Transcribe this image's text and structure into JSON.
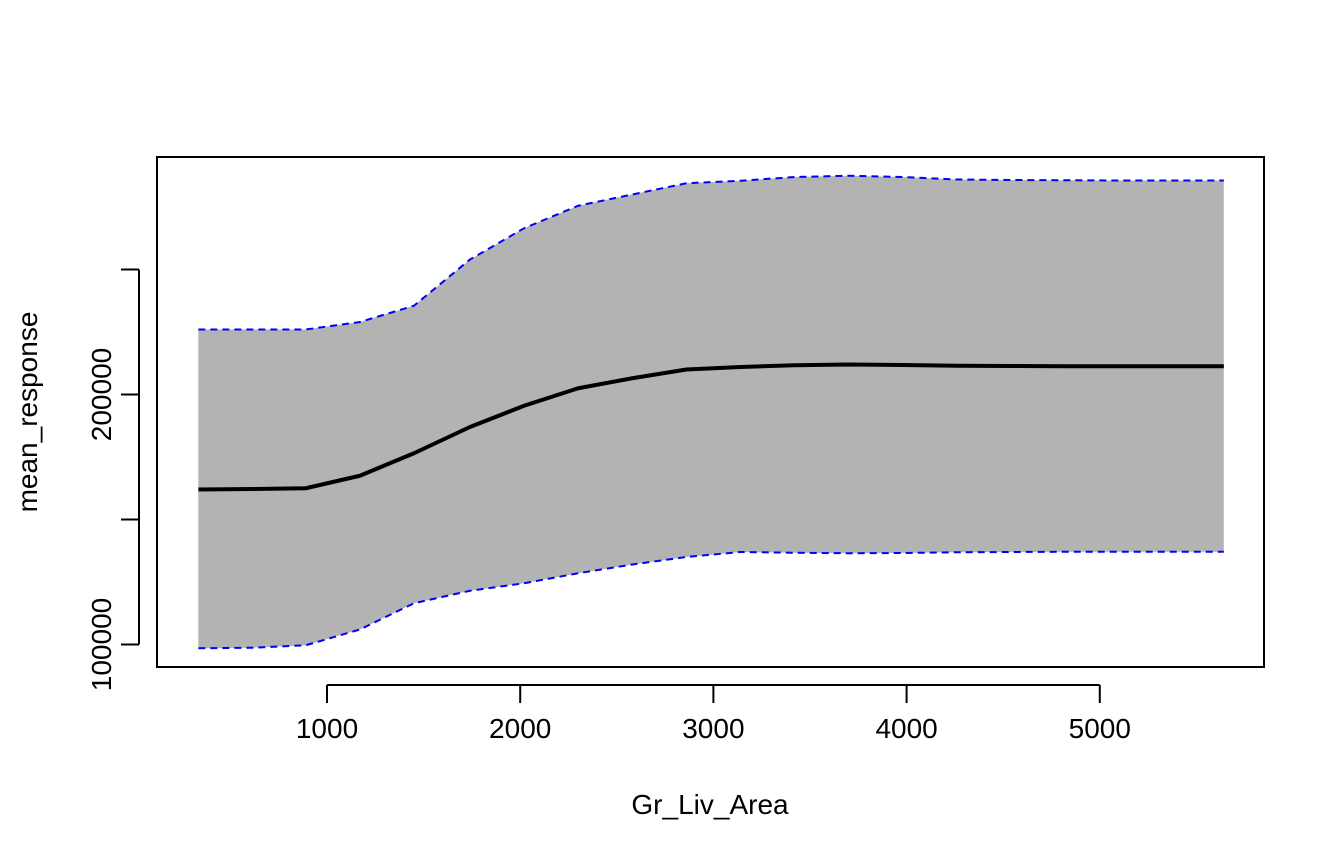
{
  "chart_data": {
    "type": "area",
    "title": "",
    "xlabel": "Gr_Liv_Area",
    "ylabel": "mean_response",
    "xlim": [
      120,
      5850
    ],
    "ylim": [
      91000,
      295000
    ],
    "x_ticks": [
      1000,
      2000,
      3000,
      4000,
      5000
    ],
    "x_tick_labels": [
      "1000",
      "2000",
      "3000",
      "4000",
      "5000"
    ],
    "y_ticks": [
      100000,
      150000,
      200000,
      250000
    ],
    "y_tick_labels": [
      "100000",
      "",
      "200000",
      ""
    ],
    "grid": false,
    "legend": "none",
    "x": [
      334,
      610,
      890,
      1170,
      1450,
      1740,
      2020,
      2300,
      2580,
      2860,
      3140,
      3420,
      3700,
      3980,
      4260,
      4540,
      4820,
      5100,
      5380,
      5642
    ],
    "series": [
      {
        "role": "mean",
        "color": "#000000",
        "values": [
          162000,
          162200,
          162500,
          167500,
          176500,
          187000,
          195500,
          202500,
          206500,
          210000,
          211000,
          211700,
          212000,
          211800,
          211500,
          211400,
          211300,
          211300,
          211300,
          211300
        ]
      },
      {
        "role": "upper",
        "color": "#0000ff",
        "values": [
          226000,
          226000,
          226000,
          229000,
          235500,
          254000,
          266500,
          275500,
          280000,
          284500,
          285500,
          287000,
          287500,
          287000,
          286000,
          285800,
          285700,
          285600,
          285600,
          285600
        ]
      },
      {
        "role": "lower",
        "color": "#0000ff",
        "values": [
          98500,
          98700,
          99700,
          106000,
          116500,
          121500,
          124500,
          128500,
          132000,
          135000,
          137000,
          136700,
          136500,
          136600,
          136900,
          137000,
          137100,
          137100,
          137100,
          137100
        ]
      }
    ],
    "band_color": "#b3b3b3"
  }
}
